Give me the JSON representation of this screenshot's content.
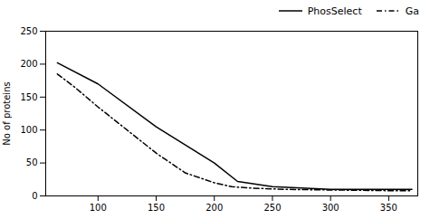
{
  "chart_data": {
    "type": "line",
    "ylabel": "No of proteins",
    "series": [
      {
        "name": "PhosSelect",
        "color": "#000000",
        "line_style": "solid",
        "x": [
          65,
          100,
          150,
          200,
          220,
          250,
          300,
          350,
          370
        ],
        "values": [
          202,
          170,
          105,
          50,
          22,
          14,
          10,
          10,
          10
        ]
      },
      {
        "name": "Ga",
        "color": "#000000",
        "line_style": "dashdot",
        "x": [
          65,
          80,
          100,
          125,
          150,
          175,
          200,
          215,
          230,
          260,
          300,
          350,
          370
        ],
        "values": [
          185,
          165,
          135,
          100,
          65,
          35,
          20,
          14,
          12,
          10,
          9,
          8,
          8
        ]
      }
    ],
    "xlim": [
      55,
      375
    ],
    "ylim": [
      0,
      250
    ],
    "xticks": [
      100,
      150,
      200,
      250,
      300,
      350
    ],
    "yticks": [
      0,
      50,
      100,
      150,
      200,
      250
    ],
    "legend": "upper right",
    "grid": false
  }
}
